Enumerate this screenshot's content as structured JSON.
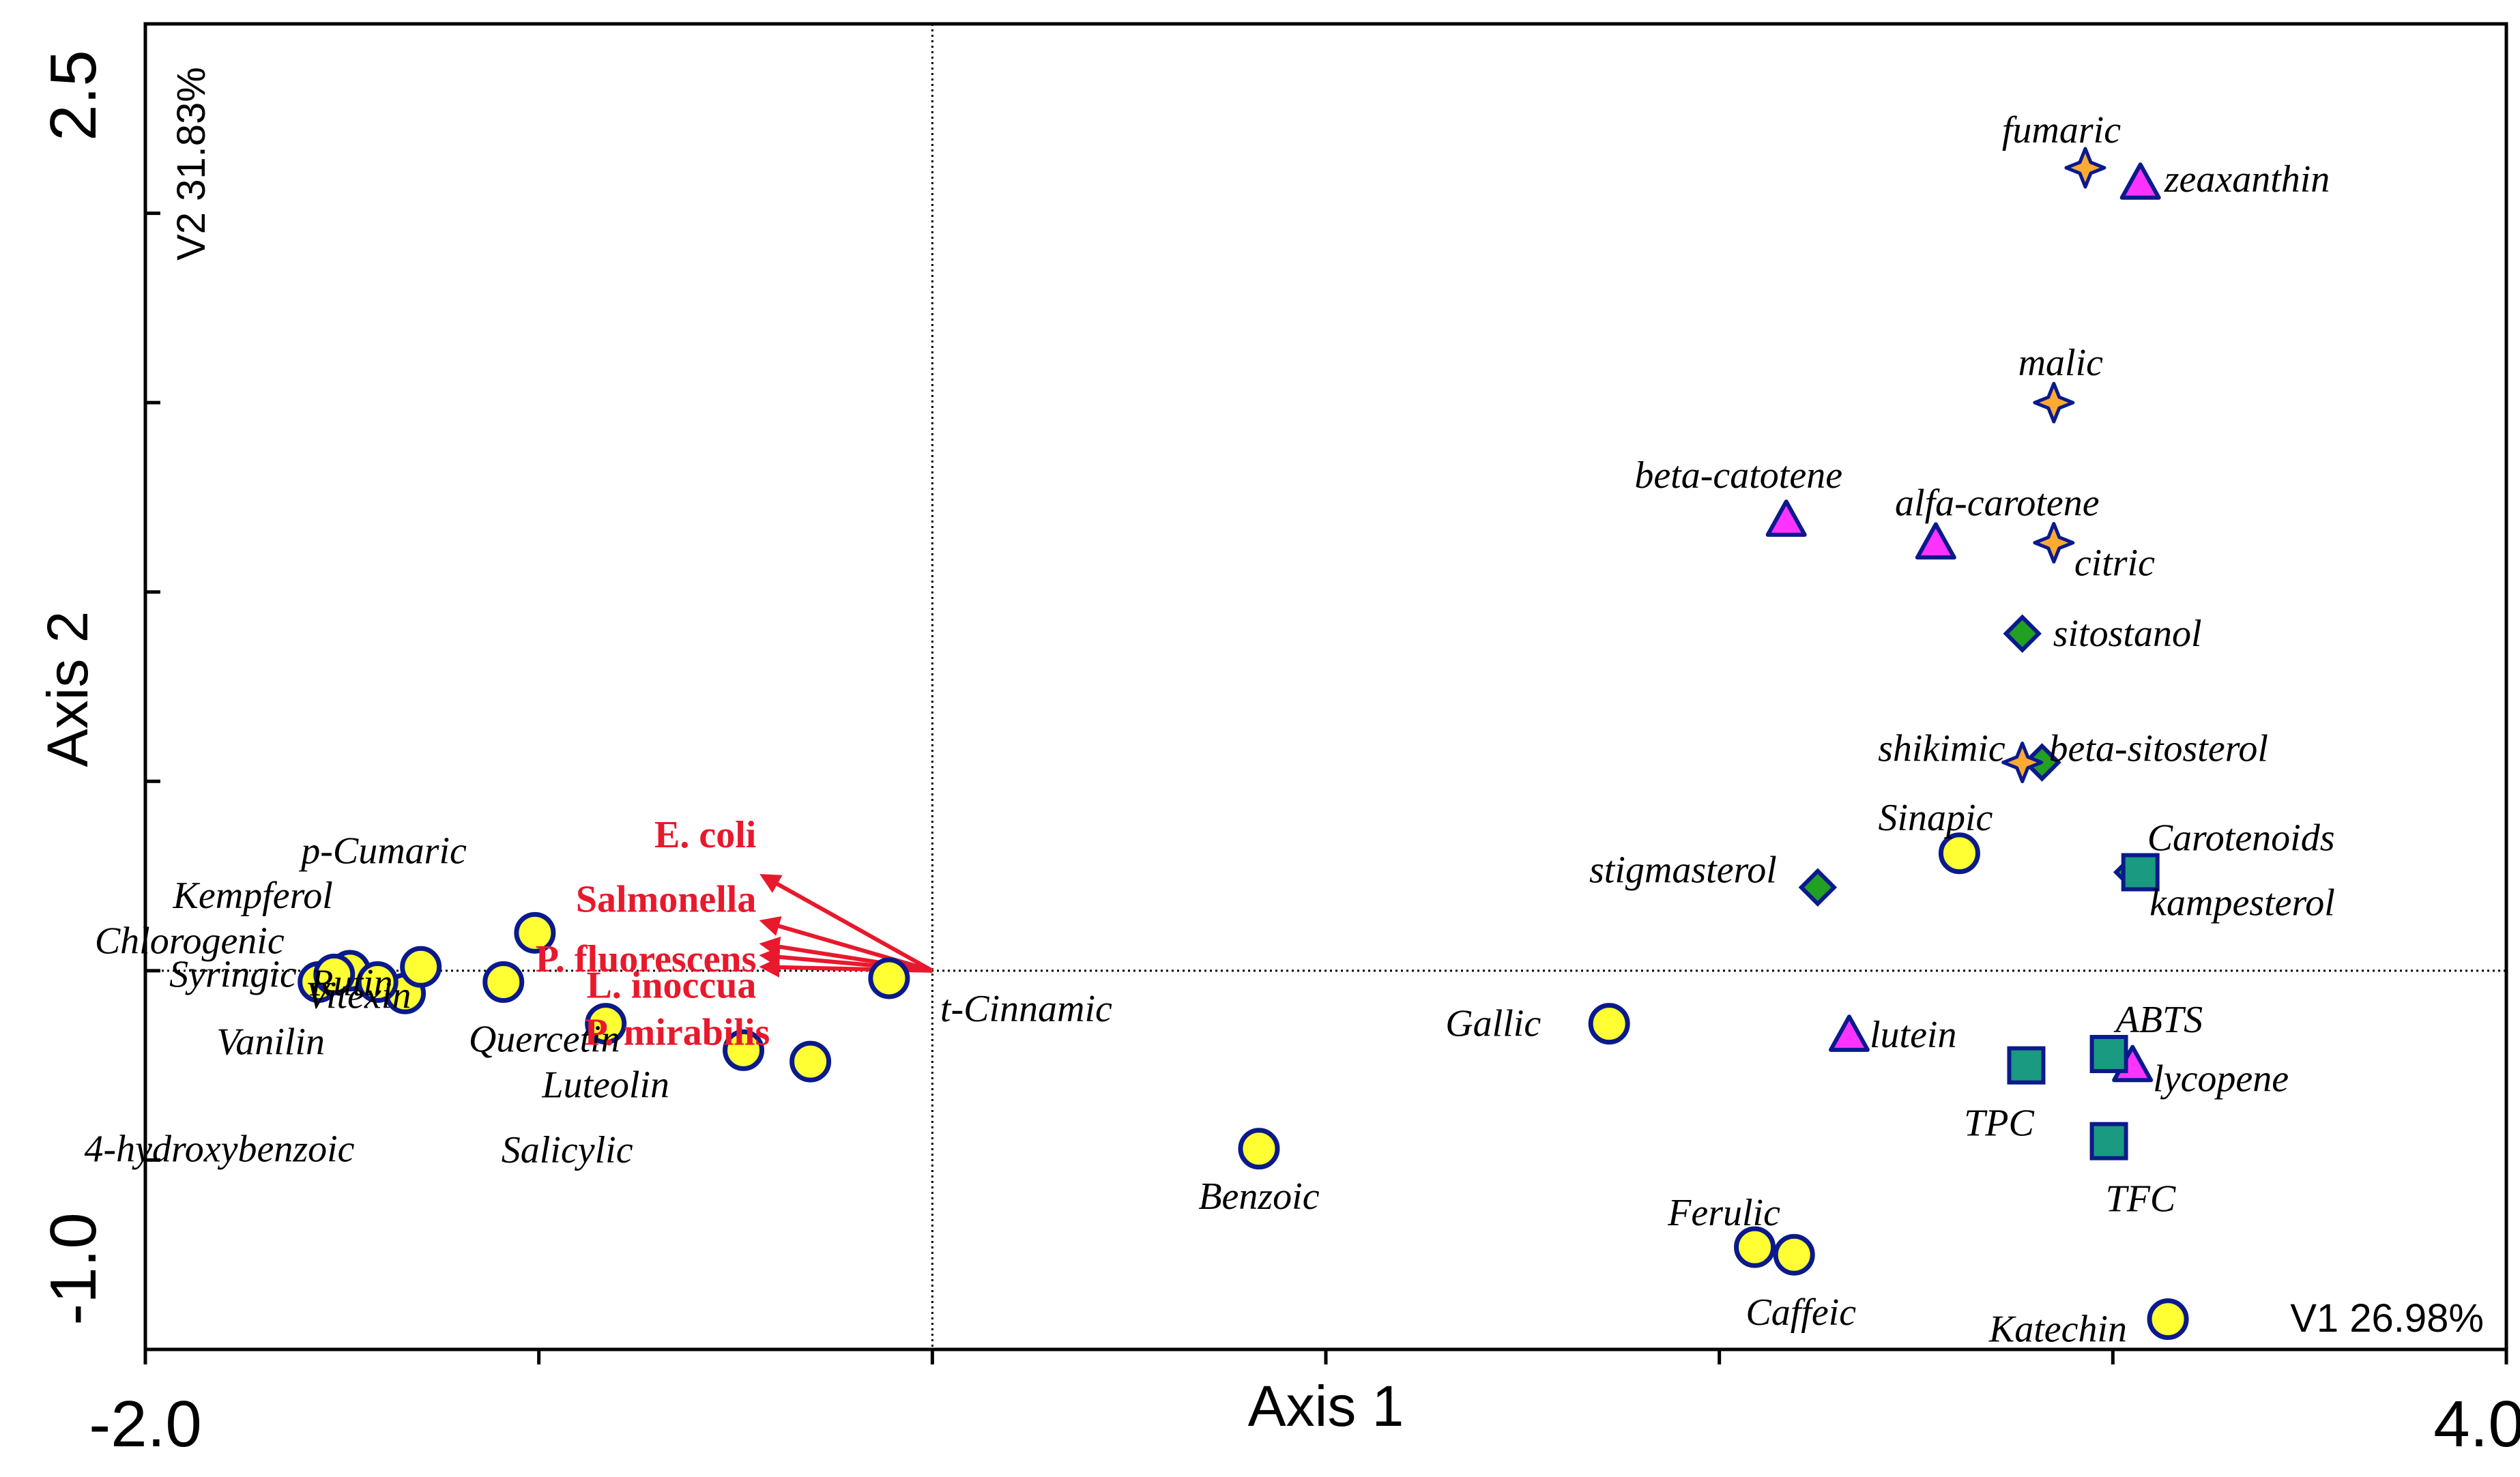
{
  "chart_data": {
    "type": "scatter",
    "title": "",
    "xlabel": "Axis 1",
    "ylabel": "Axis 2",
    "xlim": [
      -2.0,
      4.0
    ],
    "ylim": [
      -1.0,
      2.5
    ],
    "x_tick_labels": [
      "-2.0",
      "4.0"
    ],
    "y_tick_labels": [
      "2.5",
      "-1.0"
    ],
    "axis_variance_labels": {
      "x": "V1 26.98%",
      "y": "V2 31.83%"
    },
    "zero_reference_lines": true,
    "grid": false,
    "colors": {
      "circle_fill": "#ffff33",
      "marker_stroke": "#0a1a8c",
      "triangle_fill": "#ff33ff",
      "diamond_fill": "#22a022",
      "square_fill": "#1a9a80",
      "star_fill": "#ffaa33",
      "vector_color": "#e8192c"
    },
    "series": [
      {
        "marker": "circle",
        "points": [
          {
            "label": "p-Cumaric",
            "x": -1.01,
            "y": 0.1
          },
          {
            "label": "Kempferol",
            "x": -1.48,
            "y": 0.0
          },
          {
            "label": "Chlorogenic",
            "x": -1.56,
            "y": -0.03
          },
          {
            "label": "Syringic",
            "x": -1.52,
            "y": -0.01
          },
          {
            "label": "Rutin",
            "x": -1.34,
            "y": -0.06
          },
          {
            "label": "Vitexin",
            "x": -1.41,
            "y": -0.03
          },
          {
            "label": "Vanilin",
            "x": -1.3,
            "y": 0.01
          },
          {
            "label": "Quercetin",
            "x": -1.09,
            "y": -0.03
          },
          {
            "label": "Luteolin",
            "x": -0.83,
            "y": -0.14
          },
          {
            "label": "4-hydroxybenzoic",
            "x": -0.48,
            "y": -0.21
          },
          {
            "label": "Salicylic",
            "x": -0.31,
            "y": -0.24
          },
          {
            "label": "t-Cinnamic",
            "x": -0.11,
            "y": -0.02
          },
          {
            "label": "Benzoic",
            "x": 0.83,
            "y": -0.47
          },
          {
            "label": "Gallic",
            "x": 1.72,
            "y": -0.14
          },
          {
            "label": "Sinapic",
            "x": 2.61,
            "y": 0.31
          },
          {
            "label": "Ferulic",
            "x": 2.09,
            "y": -0.73
          },
          {
            "label": "Caffeic",
            "x": 2.19,
            "y": -0.75
          },
          {
            "label": "Katechin",
            "x": 3.14,
            "y": -0.92
          }
        ]
      },
      {
        "marker": "triangle",
        "points": [
          {
            "label": "zeaxanthin",
            "x": 3.07,
            "y": 2.08
          },
          {
            "label": "beta-catotene",
            "x": 2.17,
            "y": 1.19
          },
          {
            "label": "alfa-carotene",
            "x": 2.55,
            "y": 1.13
          },
          {
            "label": "lutein",
            "x": 2.33,
            "y": -0.17
          },
          {
            "label": "lycopene",
            "x": 3.05,
            "y": -0.25
          }
        ]
      },
      {
        "marker": "diamond",
        "points": [
          {
            "label": "sitostanol",
            "x": 2.77,
            "y": 0.89
          },
          {
            "label": "beta-sitosterol",
            "x": 2.82,
            "y": 0.55
          },
          {
            "label": "stigmasterol",
            "x": 2.25,
            "y": 0.22
          },
          {
            "label": "kampesterol",
            "x": 3.05,
            "y": 0.26
          }
        ]
      },
      {
        "marker": "square",
        "points": [
          {
            "label": "Carotenoids",
            "x": 3.07,
            "y": 0.26
          },
          {
            "label": "ABTS",
            "x": 2.99,
            "y": -0.22
          },
          {
            "label": "TPC",
            "x": 2.78,
            "y": -0.25
          },
          {
            "label": "TFC",
            "x": 2.99,
            "y": -0.45
          }
        ]
      },
      {
        "marker": "star",
        "points": [
          {
            "label": "fumaric",
            "x": 2.93,
            "y": 2.12
          },
          {
            "label": "malic",
            "x": 2.85,
            "y": 1.5
          },
          {
            "label": "citric",
            "x": 2.85,
            "y": 1.13
          },
          {
            "label": "shikimic",
            "x": 2.77,
            "y": 0.55
          }
        ]
      }
    ],
    "vectors": [
      {
        "label": "E. coli",
        "x": -0.43,
        "y": 0.25
      },
      {
        "label": "Salmonella",
        "x": -0.43,
        "y": 0.13
      },
      {
        "label": "P. fluorescens",
        "x": -0.43,
        "y": 0.07
      },
      {
        "label": "L. inoccua",
        "x": -0.43,
        "y": 0.04
      },
      {
        "label": "P. mirabilis",
        "x": -0.43,
        "y": 0.01
      }
    ]
  }
}
